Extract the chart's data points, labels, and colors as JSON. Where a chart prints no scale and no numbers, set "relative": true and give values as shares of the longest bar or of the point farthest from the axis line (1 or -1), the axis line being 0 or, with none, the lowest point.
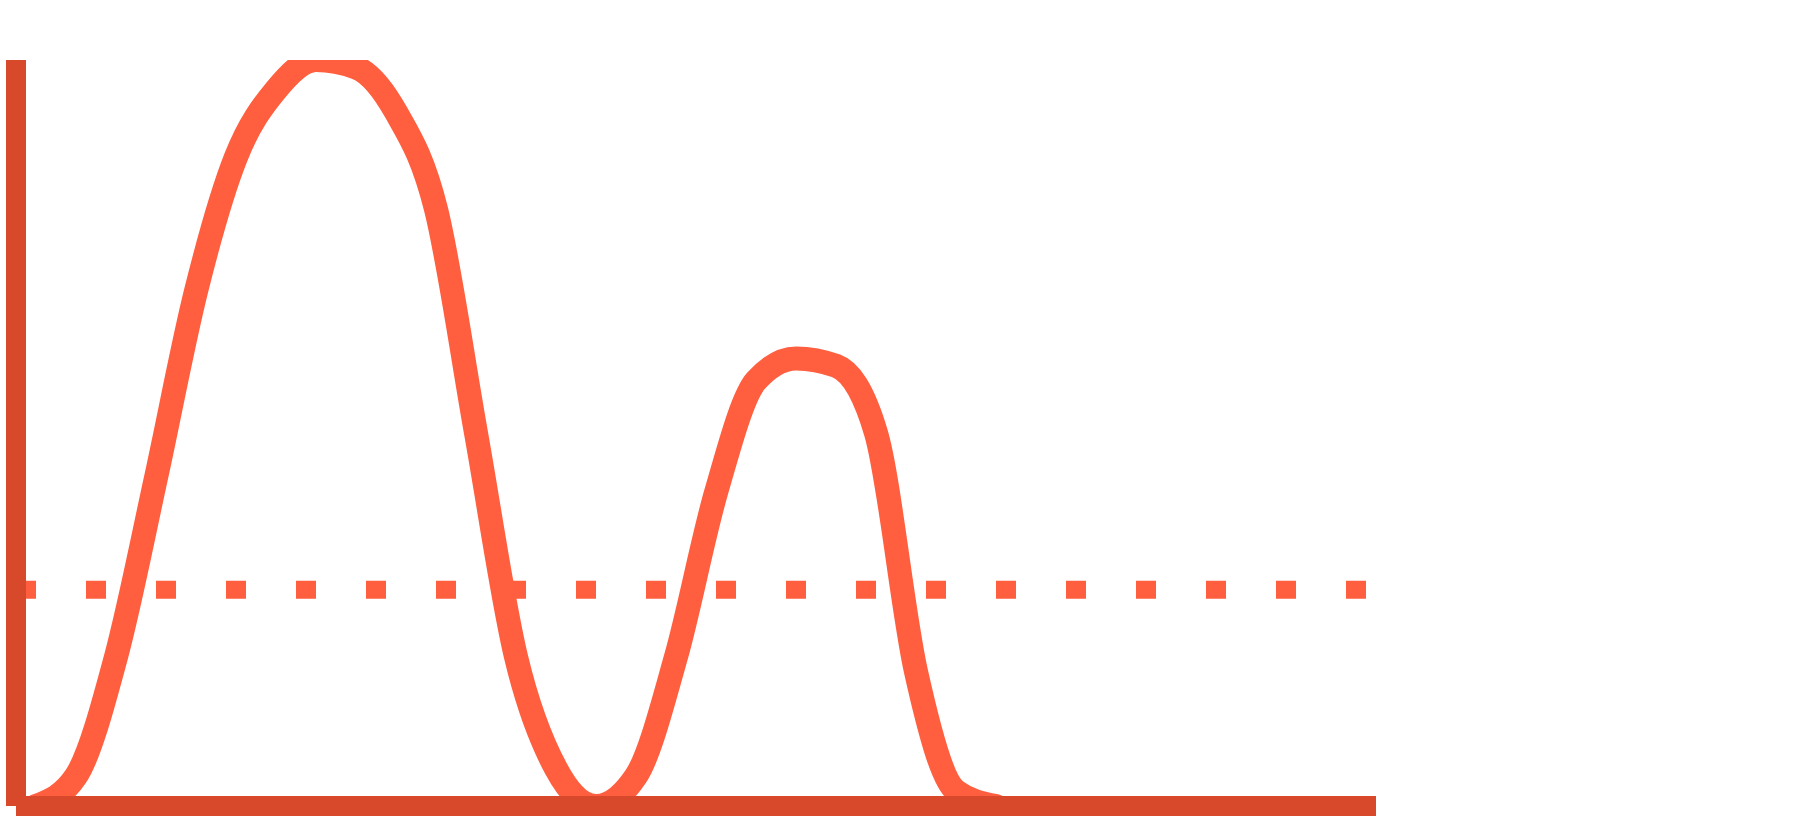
{
  "chart_data": {
    "type": "line",
    "relative": true,
    "marker": "none",
    "line_style": "solid",
    "categories": [
      null,
      null,
      null,
      null,
      null,
      null,
      null,
      null,
      null,
      null,
      null,
      null,
      null,
      null,
      null,
      null,
      null,
      null,
      null,
      null,
      null,
      null,
      null,
      null,
      null,
      null,
      null,
      null,
      null,
      null,
      null,
      null,
      null,
      null
    ],
    "series": [
      {
        "color": "#ff5f3f",
        "values": [
          0,
          0.04,
          0.2,
          0.44,
          0.69,
          0.87,
          0.96,
          1,
          0.99,
          0.93,
          0.8,
          0.5,
          0.2,
          0.05,
          0,
          0.04,
          0.2,
          0.42,
          0.57,
          0.6,
          0.59,
          0.5,
          0.18,
          0.02,
          0,
          null,
          null,
          null,
          null,
          null,
          null,
          null,
          null,
          null
        ]
      }
    ],
    "ref_lines": [
      {
        "axis": "y",
        "value": 0.29,
        "color": "#ff5f3f",
        "line_style": "dotted"
      }
    ]
  }
}
